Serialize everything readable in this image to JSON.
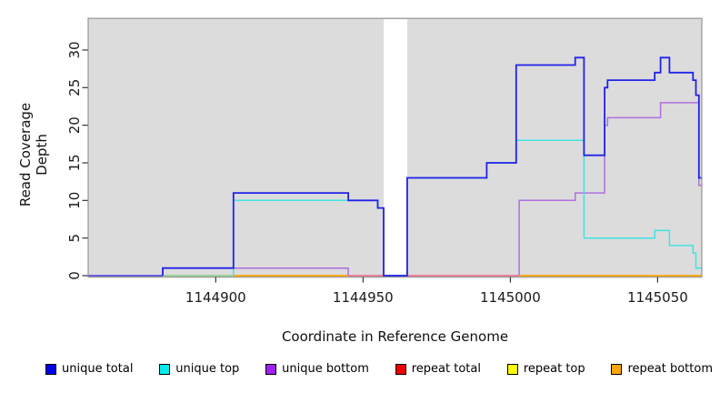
{
  "figure": {
    "xlabel": "Coordinate in Reference Genome",
    "ylabel": "Read Coverage Depth"
  },
  "chart_data": {
    "type": "line",
    "subtype": "step-coverage",
    "title": "",
    "xlabel": "Coordinate in Reference Genome",
    "ylabel": "Read Coverage Depth",
    "xlim": [
      1144856.7,
      1145065
    ],
    "ylim": [
      0,
      34.2
    ],
    "x_ticks": [
      1144900,
      1144950,
      1145000,
      1145050
    ],
    "y_ticks": [
      0,
      5,
      10,
      15,
      20,
      25,
      30
    ],
    "grid": false,
    "plot_bg": "#DCDCDC",
    "border_color": "#969696",
    "tick_color": "#333333",
    "tick_label_color": "#1a1a1a",
    "gap_region": {
      "x1": 1144957,
      "x2": 1144965,
      "color": "#FFFFFF"
    },
    "zero_level_segments": [
      {
        "x1": 1144856.7,
        "x2": 1144882,
        "color": "#5B4FE0"
      },
      {
        "x1": 1144882,
        "x2": 1144906,
        "color": "#90CE90"
      },
      {
        "x1": 1144906,
        "x2": 1144945,
        "color": "#FFA500"
      },
      {
        "x1": 1144945,
        "x2": 1145003,
        "color": "#EF7292"
      },
      {
        "x1": 1145003,
        "x2": 1145065,
        "color": "#FFA500"
      }
    ],
    "series": [
      {
        "name": "unique bottom",
        "color": "#AE6FDF",
        "width": 1.5,
        "draw": true,
        "segments": [
          {
            "rise_from_zero": true,
            "end_to_zero": true,
            "x_end": 1144945,
            "points": [
              [
                1144882,
                1
              ]
            ]
          },
          {
            "rise_from_zero": true,
            "end_to_zero": false,
            "x_end": 1145065,
            "points": [
              [
                1145003,
                10
              ],
              [
                1145022,
                11
              ],
              [
                1145032,
                20
              ],
              [
                1145033,
                21
              ],
              [
                1145051,
                23
              ],
              [
                1145064,
                12
              ]
            ]
          }
        ]
      },
      {
        "name": "unique top",
        "color": "#42E2E2",
        "width": 1.5,
        "draw": true,
        "segments": [
          {
            "rise_from_zero": true,
            "end_to_zero": false,
            "x_end": 1145065,
            "points": [
              [
                1144906,
                10
              ],
              [
                1144945,
                10
              ],
              [
                1144955,
                9
              ],
              [
                1144957,
                0
              ],
              [
                1144965,
                13
              ],
              [
                1144992,
                15
              ],
              [
                1145002,
                18
              ],
              [
                1145025,
                5
              ],
              [
                1145049,
                6
              ],
              [
                1145054,
                4
              ],
              [
                1145062,
                3
              ],
              [
                1145063,
                1
              ]
            ]
          }
        ]
      },
      {
        "name": "unique total",
        "color": "#2222E8",
        "width": 1.8,
        "draw": true,
        "segments": [
          {
            "rise_from_zero": true,
            "end_to_zero": false,
            "x_end": 1145065,
            "points": [
              [
                1144882,
                1
              ],
              [
                1144906,
                11
              ],
              [
                1144945,
                10
              ],
              [
                1144955,
                9
              ],
              [
                1144957,
                0
              ],
              [
                1144965,
                13
              ],
              [
                1144992,
                15
              ],
              [
                1145002,
                28
              ],
              [
                1145022,
                29
              ],
              [
                1145025,
                16
              ],
              [
                1145032,
                25
              ],
              [
                1145033,
                26
              ],
              [
                1145049,
                27
              ],
              [
                1145051,
                29
              ],
              [
                1145054,
                27
              ],
              [
                1145062,
                26
              ],
              [
                1145063,
                24
              ],
              [
                1145064,
                13
              ]
            ]
          }
        ]
      },
      {
        "name": "repeat total",
        "color": "#EF7292",
        "width": 1.5,
        "draw": false,
        "segments": [
          {
            "rise_from_zero": false,
            "end_to_zero": false,
            "x_end": 1145065,
            "points": [
              [
                1144856.7,
                0
              ]
            ]
          }
        ]
      },
      {
        "name": "repeat top",
        "color": "#FFFF00",
        "width": 1.5,
        "draw": false,
        "segments": [
          {
            "rise_from_zero": false,
            "end_to_zero": false,
            "x_end": 1145065,
            "points": [
              [
                1144856.7,
                0
              ]
            ]
          }
        ]
      },
      {
        "name": "repeat bottom",
        "color": "#FFA500",
        "width": 1.5,
        "draw": false,
        "segments": [
          {
            "rise_from_zero": false,
            "end_to_zero": false,
            "x_end": 1145065,
            "points": [
              [
                1144856.7,
                0
              ]
            ]
          }
        ]
      }
    ],
    "legend": {
      "position": "bottom",
      "items": [
        {
          "label": "unique total",
          "color": "#0000EB"
        },
        {
          "label": "unique top",
          "color": "#00EEEE"
        },
        {
          "label": "unique bottom",
          "color": "#A020F0"
        },
        {
          "label": "repeat total",
          "color": "#EE0000"
        },
        {
          "label": "repeat top",
          "color": "#FFFF00"
        },
        {
          "label": "repeat bottom",
          "color": "#FFA500"
        }
      ]
    }
  }
}
